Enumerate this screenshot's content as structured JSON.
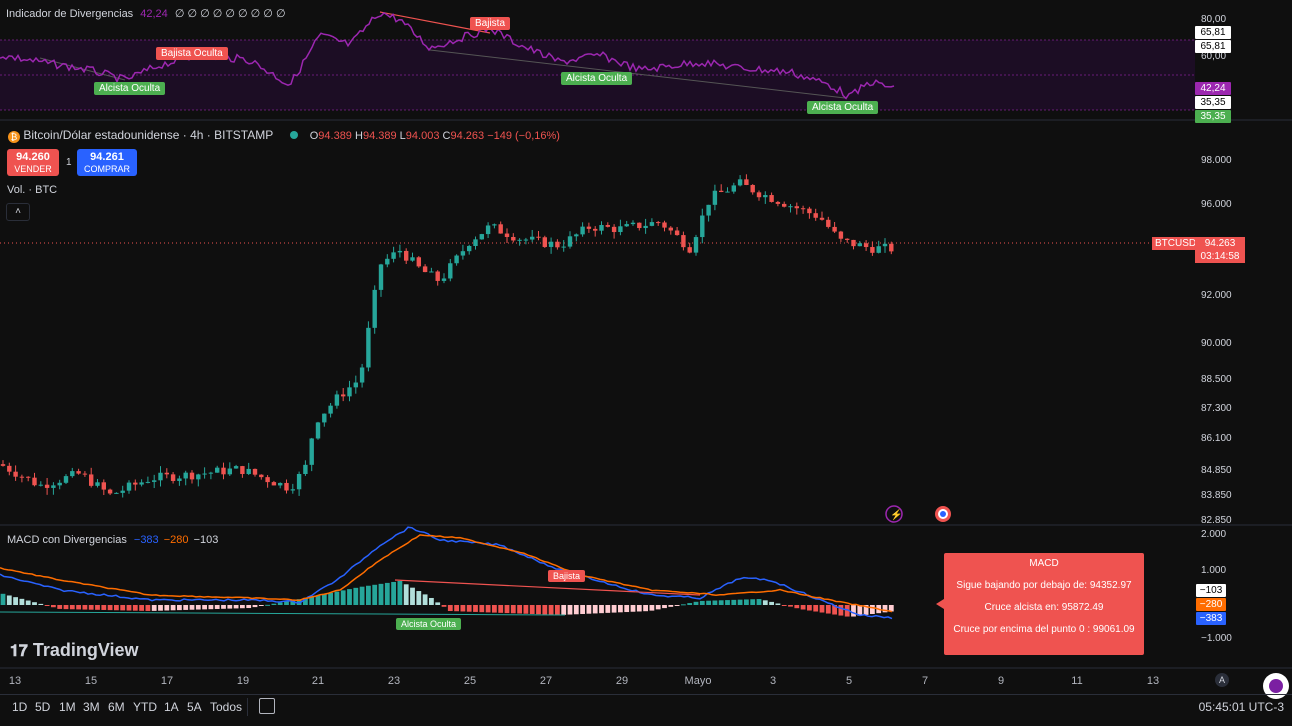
{
  "colors": {
    "up": "#26a69a",
    "down": "#ef5350",
    "purple": "#9c27b0",
    "macd_line": "#2962ff",
    "signal_line": "#ff6d00",
    "bg": "#0f0f0f"
  },
  "divergence_panel": {
    "title": "Indicador de Divergencias",
    "value": "42,24",
    "zeros": "∅ ∅ ∅ ∅ ∅ ∅ ∅ ∅ ∅",
    "labels": {
      "bajista": "Bajista",
      "bajista_oculta": "Bajista Oculta",
      "alcista_oculta": "Alcista Oculta"
    },
    "axis": [
      "80,00",
      "60,00"
    ],
    "axis_boxes": [
      "65,81",
      "65,81",
      "42,24",
      "35,35",
      "35,35"
    ]
  },
  "symbol": {
    "icon": "bitcoin-icon",
    "name": "Bitcoin/Dólar estadounidense · 4h · BITSTAMP",
    "o_label": "O",
    "o": "94.389",
    "h_label": "H",
    "h": "94.389",
    "l_label": "L",
    "l": "94.003",
    "c_label": "C",
    "c": "94.263",
    "change": "−149 (−0,16%)"
  },
  "trade": {
    "sell_price": "94.260",
    "sell_label": "VENDER",
    "spread": "1",
    "buy_price": "94.261",
    "buy_label": "COMPRAR"
  },
  "volume_label": "Vol. · BTC",
  "price_axis": [
    "98.000",
    "96.000",
    "92.000",
    "90.000",
    "88.500",
    "87.300",
    "86.100",
    "84.850",
    "83.850",
    "82.850"
  ],
  "price_tag": {
    "symbol": "BTCUSD",
    "price": "94.263",
    "countdown": "03:14:58"
  },
  "macd": {
    "title": "MACD con Divergencias",
    "v1": "−383",
    "v2": "−280",
    "v3": "−103",
    "axis": [
      "2.000",
      "1.000",
      "−1.000"
    ],
    "axis_boxes": [
      "−103",
      "−280",
      "−383"
    ],
    "labels": {
      "bajista": "Bajista",
      "alcista_oculta": "Alcista Oculta"
    },
    "box": {
      "title": "MACD",
      "line1": "Sigue bajando por debajo de: 94352.97",
      "line2": "Cruce alcista en: 95872.49",
      "line3": "Cruce por encima del punto 0 : 99061.09"
    }
  },
  "dates": [
    "13",
    "15",
    "17",
    "19",
    "21",
    "23",
    "25",
    "27",
    "29",
    "Mayo",
    "3",
    "5",
    "7",
    "9",
    "11",
    "13"
  ],
  "timeframes": [
    "1D",
    "5D",
    "1M",
    "3M",
    "6M",
    "YTD",
    "1A",
    "5A",
    "Todos"
  ],
  "time": "05:45:01 UTC-3",
  "brand": "TradingView",
  "axis_mode": "A"
}
